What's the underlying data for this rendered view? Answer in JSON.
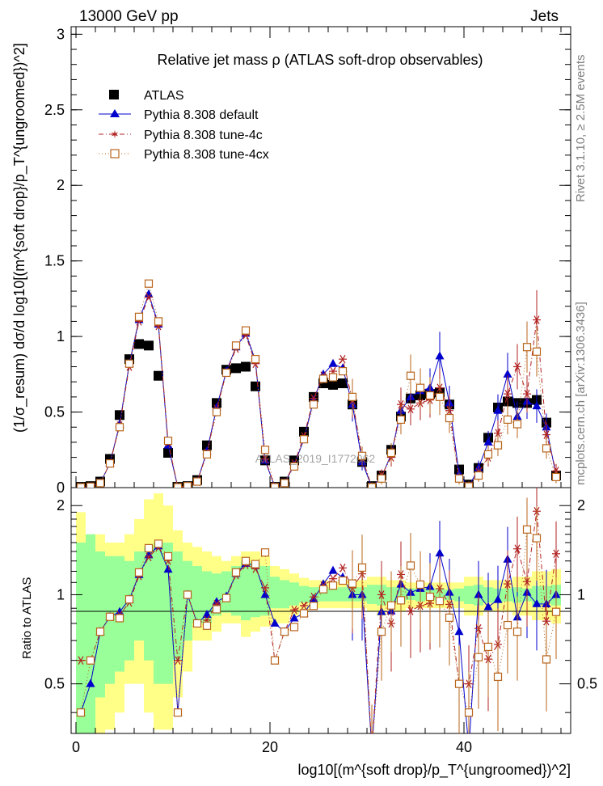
{
  "header": {
    "left": "13000 GeV pp",
    "right": "Jets",
    "side_top": "Rivet 3.1.10, ≥ 2.5M events",
    "side_bottom": "mcplots.cern.ch [arXiv:1306.3436]",
    "watermark": "ATLAS_2019_I1772062"
  },
  "chart_data": {
    "type": "scatter",
    "title": "Relative jet mass  ρ (ATLAS soft-drop observables)",
    "xlabel": "log10[(m^{soft drop}/p_T^{ungroomed})^2]",
    "ylabel_main": "(1/σ_resum) dσ/d log10[(m^{soft drop}/p_T^{ungroomed})^2]",
    "ylabel_ratio": "Ratio to ATLAS",
    "xlim": [
      -0.5,
      51
    ],
    "ylim_main": [
      0,
      3.05
    ],
    "ylim_ratio": [
      0.34,
      2.3
    ],
    "main_yticks": [
      "0",
      "0.5",
      "1",
      "1.5",
      "2",
      "2.5",
      "3"
    ],
    "ratio_yticks": [
      "0.5",
      "1",
      "2"
    ],
    "xticks": [
      "0",
      "20",
      "40"
    ],
    "x": [
      0.5,
      1.5,
      2.5,
      3.5,
      4.5,
      5.5,
      6.5,
      7.5,
      8.5,
      9.5,
      10.5,
      11.5,
      12.5,
      13.5,
      14.5,
      15.5,
      16.5,
      17.5,
      18.5,
      19.5,
      20.5,
      21.5,
      22.5,
      23.5,
      24.5,
      25.5,
      26.5,
      27.5,
      28.5,
      29.5,
      30.5,
      31.5,
      32.5,
      33.5,
      34.5,
      35.5,
      36.5,
      37.5,
      38.5,
      39.5,
      40.5,
      41.5,
      42.5,
      43.5,
      44.5,
      45.5,
      46.5,
      47.5,
      48.5,
      49.5
    ],
    "series": [
      {
        "name": "ATLAS",
        "color": "#000000",
        "marker": "square-filled",
        "values": [
          0.005,
          0.01,
          0.04,
          0.19,
          0.48,
          0.85,
          0.95,
          0.94,
          0.74,
          0.23,
          0.005,
          0.01,
          0.05,
          0.28,
          0.56,
          0.78,
          0.79,
          0.8,
          0.67,
          0.18,
          0.005,
          0.04,
          0.18,
          0.37,
          0.6,
          0.69,
          0.68,
          0.69,
          0.55,
          0.17,
          0.01,
          0.08,
          0.25,
          0.47,
          0.59,
          0.61,
          0.62,
          0.63,
          0.55,
          0.12,
          0.02,
          0.13,
          0.33,
          0.53,
          0.57,
          0.56,
          0.56,
          0.58,
          0.43,
          0.08
        ]
      },
      {
        "name": "Pythia 8.308 default",
        "color": "#0000cc",
        "marker": "triangle",
        "values": [
          0.002,
          0.005,
          0.03,
          0.16,
          0.42,
          0.82,
          1.11,
          1.28,
          1.08,
          0.28,
          0.002,
          0.01,
          0.04,
          0.24,
          0.53,
          0.77,
          0.93,
          1.02,
          0.84,
          0.18,
          0.004,
          0.03,
          0.15,
          0.32,
          0.58,
          0.75,
          0.82,
          0.79,
          0.55,
          0.17,
          0.003,
          0.07,
          0.22,
          0.51,
          0.6,
          0.64,
          0.66,
          0.87,
          0.56,
          0.09,
          0.006,
          0.13,
          0.3,
          0.51,
          0.75,
          0.47,
          0.57,
          0.54,
          0.4,
          0.08
        ]
      },
      {
        "name": "Pythia 8.308 tune-4c",
        "color": "#b22222",
        "marker": "star",
        "values": [
          0.003,
          0.006,
          0.03,
          0.16,
          0.41,
          0.8,
          1.1,
          1.26,
          1.07,
          0.3,
          0.003,
          0.01,
          0.04,
          0.23,
          0.52,
          0.76,
          0.92,
          1.01,
          0.82,
          0.19,
          0.003,
          0.03,
          0.16,
          0.34,
          0.59,
          0.74,
          0.77,
          0.85,
          0.58,
          0.2,
          0.003,
          0.08,
          0.2,
          0.55,
          0.52,
          0.56,
          0.58,
          0.66,
          0.51,
          0.06,
          0.01,
          0.1,
          0.2,
          0.36,
          0.62,
          0.8,
          0.62,
          1.11,
          0.35,
          0.11
        ]
      },
      {
        "name": "Pythia 8.308 tune-4cx",
        "color": "#b8651b",
        "marker": "square-open",
        "values": [
          0.002,
          0.006,
          0.03,
          0.16,
          0.4,
          0.82,
          1.13,
          1.35,
          1.1,
          0.31,
          0.002,
          0.01,
          0.04,
          0.22,
          0.5,
          0.76,
          0.94,
          1.04,
          0.85,
          0.25,
          0.003,
          0.03,
          0.14,
          0.32,
          0.55,
          0.72,
          0.73,
          0.77,
          0.6,
          0.21,
          0.003,
          0.06,
          0.23,
          0.45,
          0.74,
          0.66,
          0.61,
          0.6,
          0.46,
          0.06,
          0.008,
          0.08,
          0.22,
          0.28,
          0.45,
          0.42,
          0.93,
          0.9,
          0.26,
          0.07
        ]
      }
    ],
    "ratio_bands": {
      "x": [
        0.5,
        1.5,
        2.5,
        3.5,
        4.5,
        5.5,
        6.5,
        7.5,
        8.5,
        9.5,
        10.5,
        11.5,
        12.5,
        13.5,
        14.5,
        15.5,
        16.5,
        17.5,
        18.5,
        19.5,
        20.5,
        21.5,
        22.5,
        23.5,
        24.5,
        25.5,
        26.5,
        27.5,
        28.5,
        29.5,
        30.5,
        31.5,
        32.5,
        33.5,
        34.5,
        35.5,
        36.5,
        37.5,
        38.5,
        39.5,
        40.5,
        41.5,
        42.5,
        43.5,
        44.5,
        45.5,
        46.5,
        47.5,
        48.5,
        49.5
      ],
      "stat_lo": [
        0.3,
        0.3,
        0.45,
        0.5,
        0.55,
        0.6,
        0.7,
        0.6,
        0.5,
        0.5,
        0.6,
        0.7,
        0.8,
        0.8,
        0.85,
        0.87,
        0.85,
        0.82,
        0.84,
        0.85,
        0.9,
        0.9,
        0.92,
        0.94,
        0.94,
        0.95,
        0.95,
        0.95,
        0.95,
        0.95,
        0.93,
        0.92,
        0.94,
        0.94,
        0.96,
        0.95,
        0.96,
        0.95,
        0.96,
        0.95,
        0.93,
        0.92,
        0.94,
        0.94,
        0.95,
        0.94,
        0.95,
        0.92,
        0.93,
        0.92
      ],
      "stat_hi": [
        1.5,
        1.6,
        1.4,
        1.35,
        1.35,
        1.3,
        1.4,
        1.45,
        1.5,
        1.5,
        1.4,
        1.3,
        1.25,
        1.2,
        1.18,
        1.2,
        1.25,
        1.3,
        1.28,
        1.25,
        1.15,
        1.12,
        1.1,
        1.07,
        1.06,
        1.06,
        1.05,
        1.06,
        1.06,
        1.06,
        1.08,
        1.08,
        1.06,
        1.06,
        1.05,
        1.05,
        1.05,
        1.05,
        1.04,
        1.05,
        1.07,
        1.08,
        1.06,
        1.05,
        1.05,
        1.06,
        1.05,
        1.07,
        1.07,
        1.08
      ],
      "sys_lo": [
        0.2,
        0.2,
        0.3,
        0.35,
        0.4,
        0.5,
        0.5,
        0.4,
        0.35,
        0.35,
        0.45,
        0.55,
        0.7,
        0.7,
        0.75,
        0.8,
        0.8,
        0.72,
        0.75,
        0.78,
        0.8,
        0.8,
        0.85,
        0.88,
        0.9,
        0.9,
        0.9,
        0.9,
        0.9,
        0.9,
        0.88,
        0.85,
        0.88,
        0.88,
        0.9,
        0.9,
        0.9,
        0.9,
        0.9,
        0.9,
        0.85,
        0.85,
        0.88,
        0.88,
        0.88,
        0.85,
        0.85,
        0.82,
        0.82,
        0.8
      ],
      "sys_hi": [
        1.9,
        1.6,
        1.6,
        1.5,
        1.5,
        1.6,
        1.8,
        2.1,
        2.2,
        2.0,
        1.65,
        1.5,
        1.45,
        1.4,
        1.35,
        1.3,
        1.35,
        1.4,
        1.4,
        1.35,
        1.25,
        1.22,
        1.18,
        1.14,
        1.12,
        1.12,
        1.1,
        1.12,
        1.12,
        1.12,
        1.15,
        1.15,
        1.12,
        1.12,
        1.1,
        1.1,
        1.1,
        1.1,
        1.1,
        1.1,
        1.15,
        1.15,
        1.12,
        1.12,
        1.12,
        1.15,
        1.15,
        1.2,
        1.2,
        1.22
      ],
      "stat_color": "#99ff99",
      "sys_color": "#ffff88"
    }
  }
}
